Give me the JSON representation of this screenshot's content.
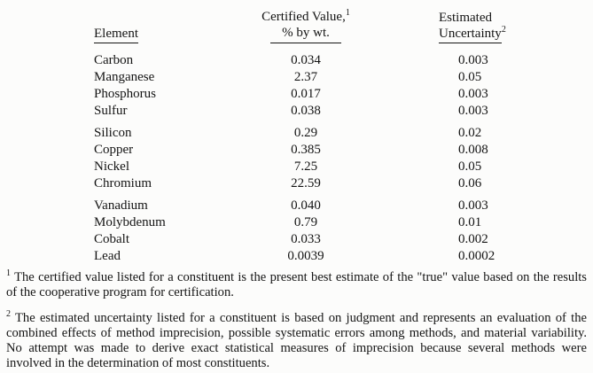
{
  "table": {
    "headers": {
      "element": "Element",
      "certified_line1": "Certified Value,",
      "certified_sup": "1",
      "certified_line2": "% by wt.",
      "uncertainty_line1": "Estimated",
      "uncertainty_line2": "Uncertainty",
      "uncertainty_sup": "2"
    },
    "groups": [
      {
        "rows": [
          {
            "element": "Carbon",
            "value": "0.034",
            "uncertainty": "0.003"
          },
          {
            "element": "Manganese",
            "value": "2.37",
            "uncertainty": "0.05"
          },
          {
            "element": "Phosphorus",
            "value": "0.017",
            "uncertainty": "0.003"
          },
          {
            "element": "Sulfur",
            "value": "0.038",
            "uncertainty": "0.003"
          }
        ]
      },
      {
        "rows": [
          {
            "element": "Silicon",
            "value": "0.29",
            "uncertainty": "0.02"
          },
          {
            "element": "Copper",
            "value": "0.385",
            "uncertainty": "0.008"
          },
          {
            "element": "Nickel",
            "value": "7.25",
            "uncertainty": "0.05"
          },
          {
            "element": "Chromium",
            "value": "22.59",
            "uncertainty": "0.06"
          }
        ]
      },
      {
        "rows": [
          {
            "element": "Vanadium",
            "value": "0.040",
            "uncertainty": "0.003"
          },
          {
            "element": "Molybdenum",
            "value": "0.79",
            "uncertainty": "0.01"
          },
          {
            "element": "Cobalt",
            "value": "0.033",
            "uncertainty": "0.002"
          },
          {
            "element": "Lead",
            "value": "0.0039",
            "uncertainty": "0.0002"
          }
        ]
      }
    ]
  },
  "footnotes": [
    {
      "marker": "1",
      "text": "The certified value listed for a constituent is the present best estimate of the \"true\" value based on the results of the cooperative program for certification."
    },
    {
      "marker": "2",
      "text": "The estimated uncertainty listed for a constituent is based on judgment and represents an evaluation of the combined effects of method imprecision, possible systematic errors among methods, and material variability. No attempt was made to derive exact statistical measures of imprecision because several methods were involved in the determination of most constituents."
    }
  ],
  "colors": {
    "text": "#141414",
    "background": "#fcfcfb"
  }
}
